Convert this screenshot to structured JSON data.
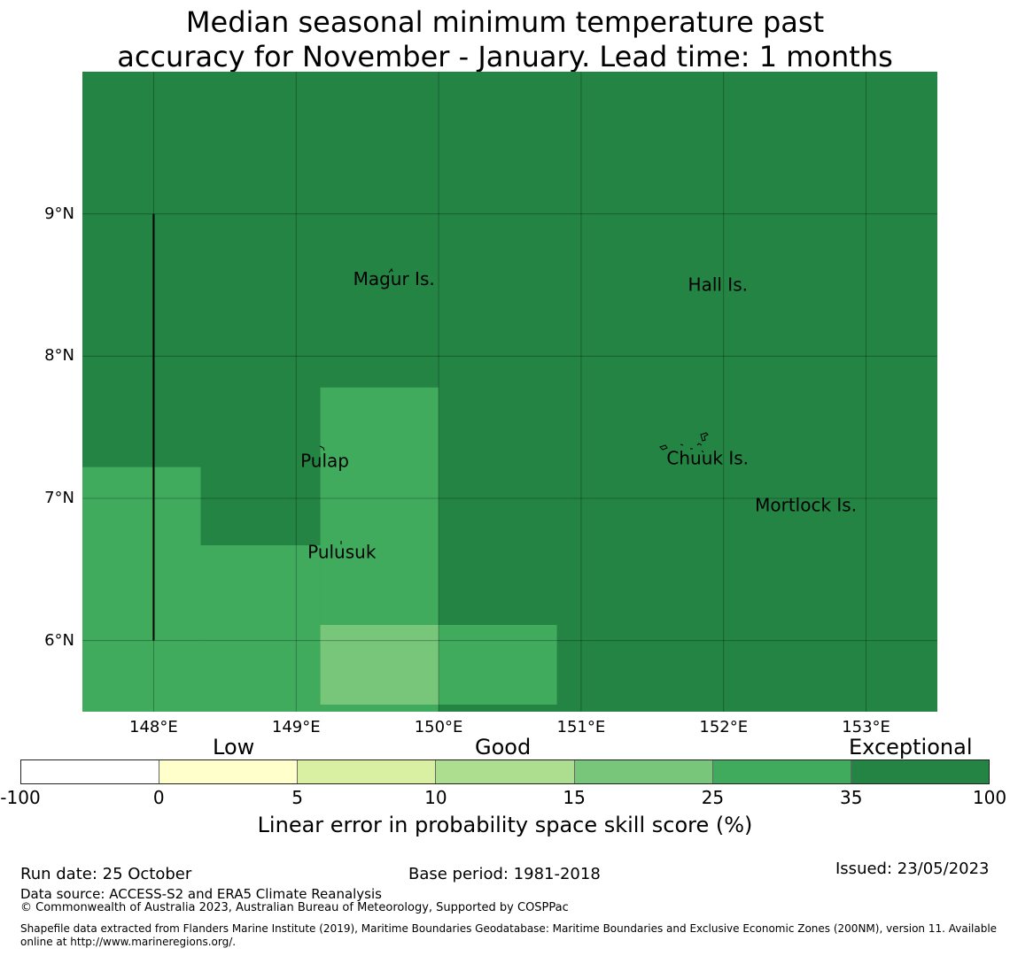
{
  "title": {
    "line1": "Median seasonal minimum temperature past",
    "line2": "accuracy for November - January. Lead time: 1 months"
  },
  "map": {
    "lon_range": [
      147.5,
      153.5
    ],
    "lat_range": [
      5.5,
      10.0
    ],
    "lon_ticks": [
      "148°E",
      "149°E",
      "150°E",
      "151°E",
      "152°E",
      "153°E"
    ],
    "lat_ticks": [
      "9°N",
      "8°N",
      "7°N",
      "6°N"
    ],
    "gridlines": true,
    "background_category": "35-100",
    "regions": [
      {
        "category": "25-35",
        "lon": [
          147.5,
          148.33
        ],
        "lat": [
          5.5,
          7.22
        ]
      },
      {
        "category": "25-35",
        "lon": [
          148.33,
          149.17
        ],
        "lat": [
          5.5,
          6.67
        ]
      },
      {
        "category": "25-35",
        "lon": [
          149.17,
          150.0
        ],
        "lat": [
          5.5,
          7.78
        ]
      },
      {
        "category": "25-35",
        "lon": [
          150.0,
          150.83
        ],
        "lat": [
          5.55,
          6.11
        ]
      },
      {
        "category": "15-25",
        "lon": [
          149.17,
          150.0
        ],
        "lat": [
          5.55,
          6.11
        ]
      }
    ],
    "boundary_line": {
      "lon": 148.0,
      "lat": [
        6.0,
        9.0
      ]
    },
    "places": [
      {
        "name": "Magur Is.",
        "lon": 149.4,
        "lat": 8.5
      },
      {
        "name": "Hall Is.",
        "lon": 151.75,
        "lat": 8.46
      },
      {
        "name": "Pulap",
        "lon": 149.03,
        "lat": 7.22
      },
      {
        "name": "Chuuk Is.",
        "lon": 151.6,
        "lat": 7.24
      },
      {
        "name": "Mortlock Is.",
        "lon": 152.22,
        "lat": 6.91
      },
      {
        "name": "Pulusuk",
        "lon": 149.08,
        "lat": 6.58
      }
    ]
  },
  "colorbar": {
    "category_labels": {
      "low": "Low",
      "good": "Good",
      "exceptional": "Exceptional"
    },
    "ticks": [
      "-100",
      "0",
      "5",
      "10",
      "15",
      "25",
      "35",
      "100"
    ],
    "colors": [
      "#ffffff",
      "#ffffcc",
      "#d9f0a3",
      "#addd8e",
      "#78c679",
      "#41ab5d",
      "#238443"
    ],
    "label": "Linear error in probability space skill score (%)"
  },
  "footer": {
    "run_date": "Run date: 25 October",
    "base_period": "Base period: 1981-2018",
    "issued": "Issued: 23/05/2023",
    "data_source": "Data source: ACCESS-S2 and ERA5 Climate Reanalysis",
    "copyright": "© Commonwealth of Australia 2023, Australian Bureau of Meteorology, Supported by COSPPac",
    "shapefile": "Shapefile data extracted from Flanders Marine Institute (2019), Maritime Boundaries Geodatabase: Maritime Boundaries and Exclusive Economic Zones (200NM), version 11. Available online at http://www.marineregions.org/."
  }
}
